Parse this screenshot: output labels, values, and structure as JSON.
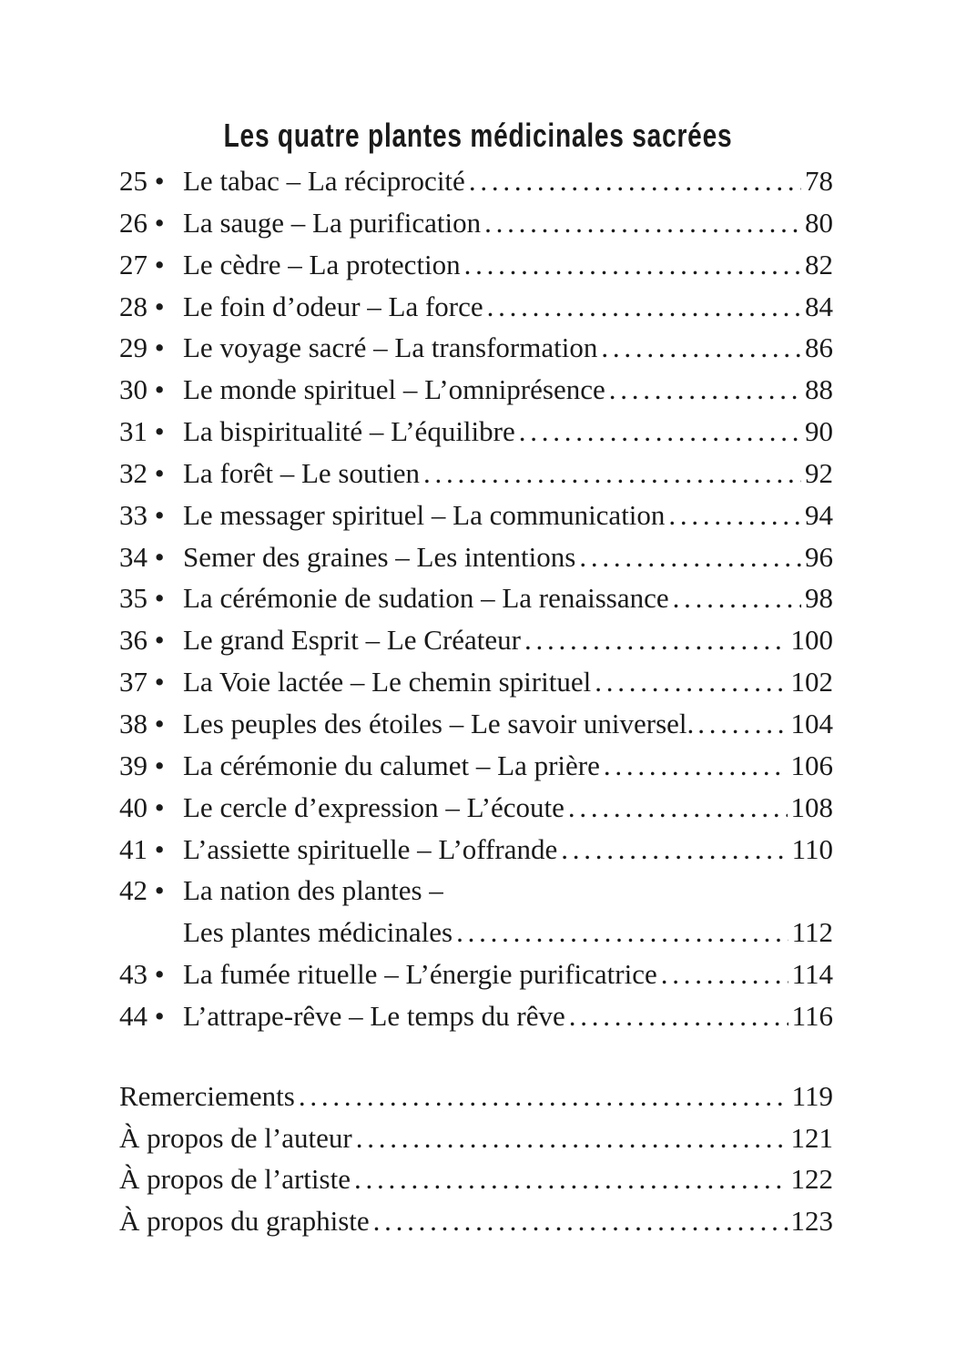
{
  "title": "Les quatre plantes médicinales sacrées",
  "entries": [
    {
      "num": "25 •",
      "label": "Le tabac – La réciprocité",
      "page": "78"
    },
    {
      "num": "26 •",
      "label": "La sauge – La purification",
      "page": "80"
    },
    {
      "num": "27 •",
      "label": "Le cèdre – La protection",
      "page": "82"
    },
    {
      "num": "28 •",
      "label": "Le foin d’odeur – La force",
      "page": "84"
    },
    {
      "num": "29 •",
      "label": "Le voyage sacré – La transformation",
      "page": "86"
    },
    {
      "num": "30 •",
      "label": "Le monde spirituel – L’omniprésence",
      "page": "88"
    },
    {
      "num": "31 •",
      "label": "La bispiritualité – L’équilibre",
      "page": "90"
    },
    {
      "num": "32 •",
      "label": "La forêt – Le soutien",
      "page": "92"
    },
    {
      "num": "33 •",
      "label": "Le messager spirituel – La communication",
      "page": "94"
    },
    {
      "num": "34 •",
      "label": "Semer des graines – Les intentions",
      "page": "96"
    },
    {
      "num": "35 •",
      "label": "La cérémonie de sudation – La renaissance",
      "page": "98"
    },
    {
      "num": "36 •",
      "label": "Le grand Esprit – Le Créateur",
      "page": "100"
    },
    {
      "num": "37 •",
      "label": "La Voie lactée – Le chemin spirituel",
      "page": "102"
    },
    {
      "num": "38 •",
      "label": "Les peuples des étoiles – Le savoir universel.",
      "page": "104"
    },
    {
      "num": "39 •",
      "label": "La cérémonie du calumet – La prière",
      "page": "106"
    },
    {
      "num": "40 •",
      "label": "Le cercle d’expression – L’écoute",
      "page": "108"
    },
    {
      "num": "41 •",
      "label": "L’assiette spirituelle – L’offrande",
      "page": "110"
    },
    {
      "num": "42 •",
      "label": "La nation des plantes –",
      "label2": "Les plantes médicinales",
      "page": "112"
    },
    {
      "num": "43 •",
      "label": "La fumée rituelle – L’énergie purificatrice",
      "page": "114"
    },
    {
      "num": "44 •",
      "label": "L’attrape-rêve – Le temps du rêve",
      "page": "116"
    }
  ],
  "back_matter": [
    {
      "label": "Remerciements",
      "page": "119"
    },
    {
      "label": "À propos de l’auteur",
      "page": "121"
    },
    {
      "label": "À propos de l’artiste",
      "page": "122"
    },
    {
      "label": "À propos du graphiste",
      "page": "123"
    }
  ]
}
